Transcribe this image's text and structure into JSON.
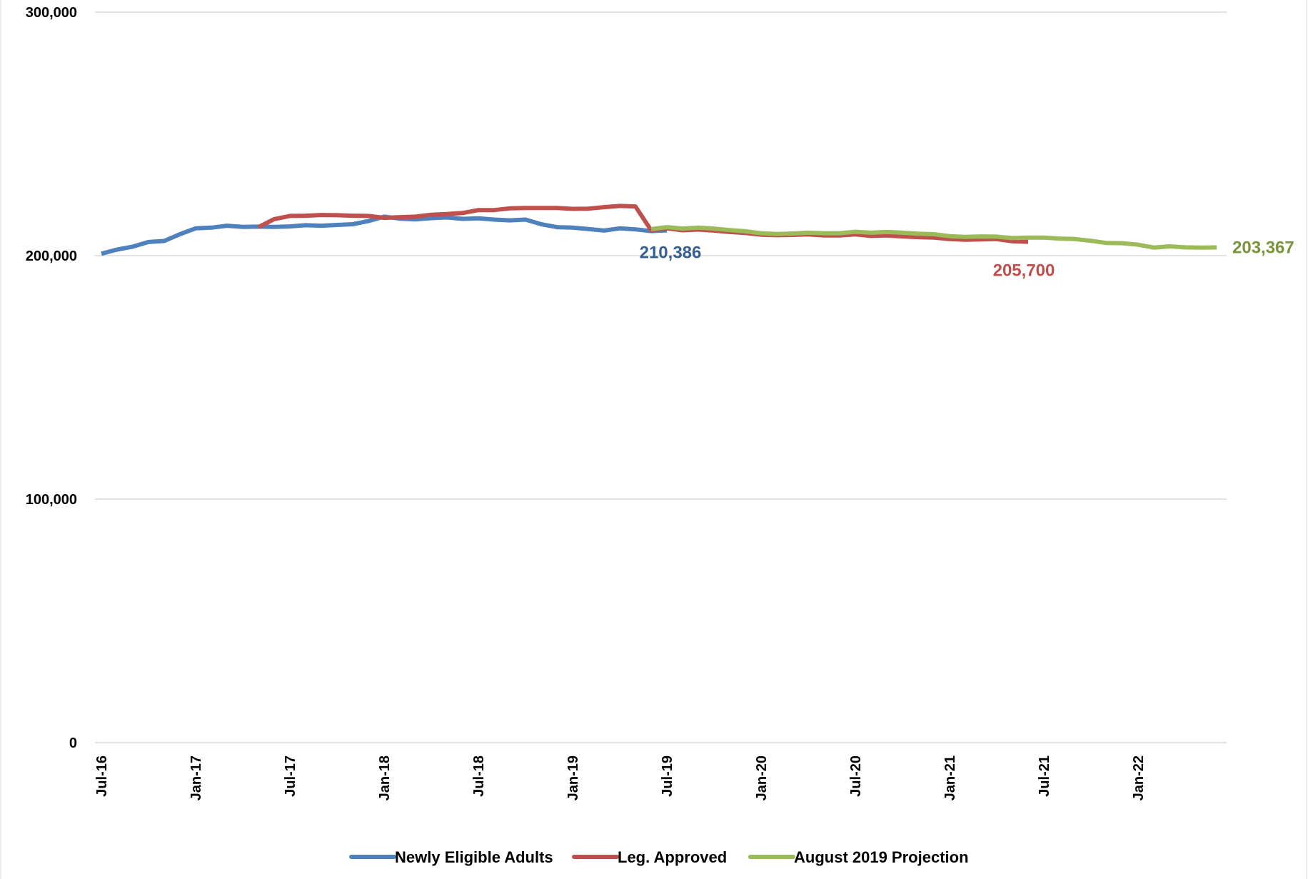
{
  "chart_data": {
    "type": "line",
    "title": "",
    "xlabel": "",
    "ylabel": "",
    "ylim": [
      0,
      300000
    ],
    "yticks": [
      0,
      100000,
      200000,
      300000
    ],
    "ytick_labels": [
      "0",
      "100,000",
      "200,000",
      "300,000"
    ],
    "x_tick_labels": [
      "Jul-16",
      "Jan-17",
      "Jul-17",
      "Jan-18",
      "Jul-18",
      "Jan-19",
      "Jul-19",
      "Jan-20",
      "Jul-20",
      "Jan-21",
      "Jul-21",
      "Jan-22"
    ],
    "x_start": "Jul-16",
    "x_end": "Mar-23",
    "grid": "horizontal",
    "legend_position": "bottom",
    "series": [
      {
        "name": "Newly Eligible Adults",
        "color": "#4f81bd",
        "start": "Jul-16",
        "values": [
          200800,
          202500,
          203700,
          205600,
          206000,
          208800,
          211200,
          211500,
          212300,
          211800,
          211900,
          211800,
          212000,
          212500,
          212300,
          212600,
          212900,
          214200,
          216000,
          215200,
          214900,
          215400,
          215700,
          215100,
          215300,
          214800,
          214500,
          214800,
          212900,
          211700,
          211500,
          210900,
          210300,
          211200,
          210800,
          210100,
          210386
        ]
      },
      {
        "name": "Leg. Approved",
        "color": "#c0504d",
        "start": "May-17",
        "values": [
          211700,
          215000,
          216300,
          216400,
          216700,
          216600,
          216400,
          216300,
          215500,
          215800,
          216000,
          216800,
          217100,
          217500,
          218700,
          218700,
          219400,
          219600,
          219600,
          219600,
          219200,
          219300,
          219900,
          220400,
          220200,
          210400,
          211200,
          210400,
          210700,
          210300,
          209700,
          209300,
          208600,
          208400,
          208500,
          208700,
          208300,
          208300,
          208700,
          208100,
          208300,
          207900,
          207600,
          207400,
          206800,
          206500,
          206700,
          206800,
          205900,
          205700
        ]
      },
      {
        "name": "August 2019 Projection",
        "color": "#9bbb59",
        "start": "Jun-19",
        "values": [
          210900,
          211700,
          211100,
          211500,
          211100,
          210500,
          210000,
          209200,
          208900,
          209100,
          209400,
          209200,
          209200,
          209800,
          209400,
          209700,
          209400,
          209000,
          208800,
          208000,
          207700,
          207900,
          207800,
          207200,
          207400,
          207400,
          207000,
          206800,
          206100,
          205200,
          205100,
          204500,
          203300,
          203800,
          203400,
          203300,
          203367
        ]
      }
    ],
    "annotations": [
      {
        "text": "210,386",
        "series": "Newly Eligible Adults",
        "color": "#376092"
      },
      {
        "text": "205,700",
        "series": "Leg. Approved",
        "color": "#c0504d"
      },
      {
        "text": "203,367",
        "series": "August 2019 Projection",
        "color": "#77933c"
      }
    ]
  }
}
